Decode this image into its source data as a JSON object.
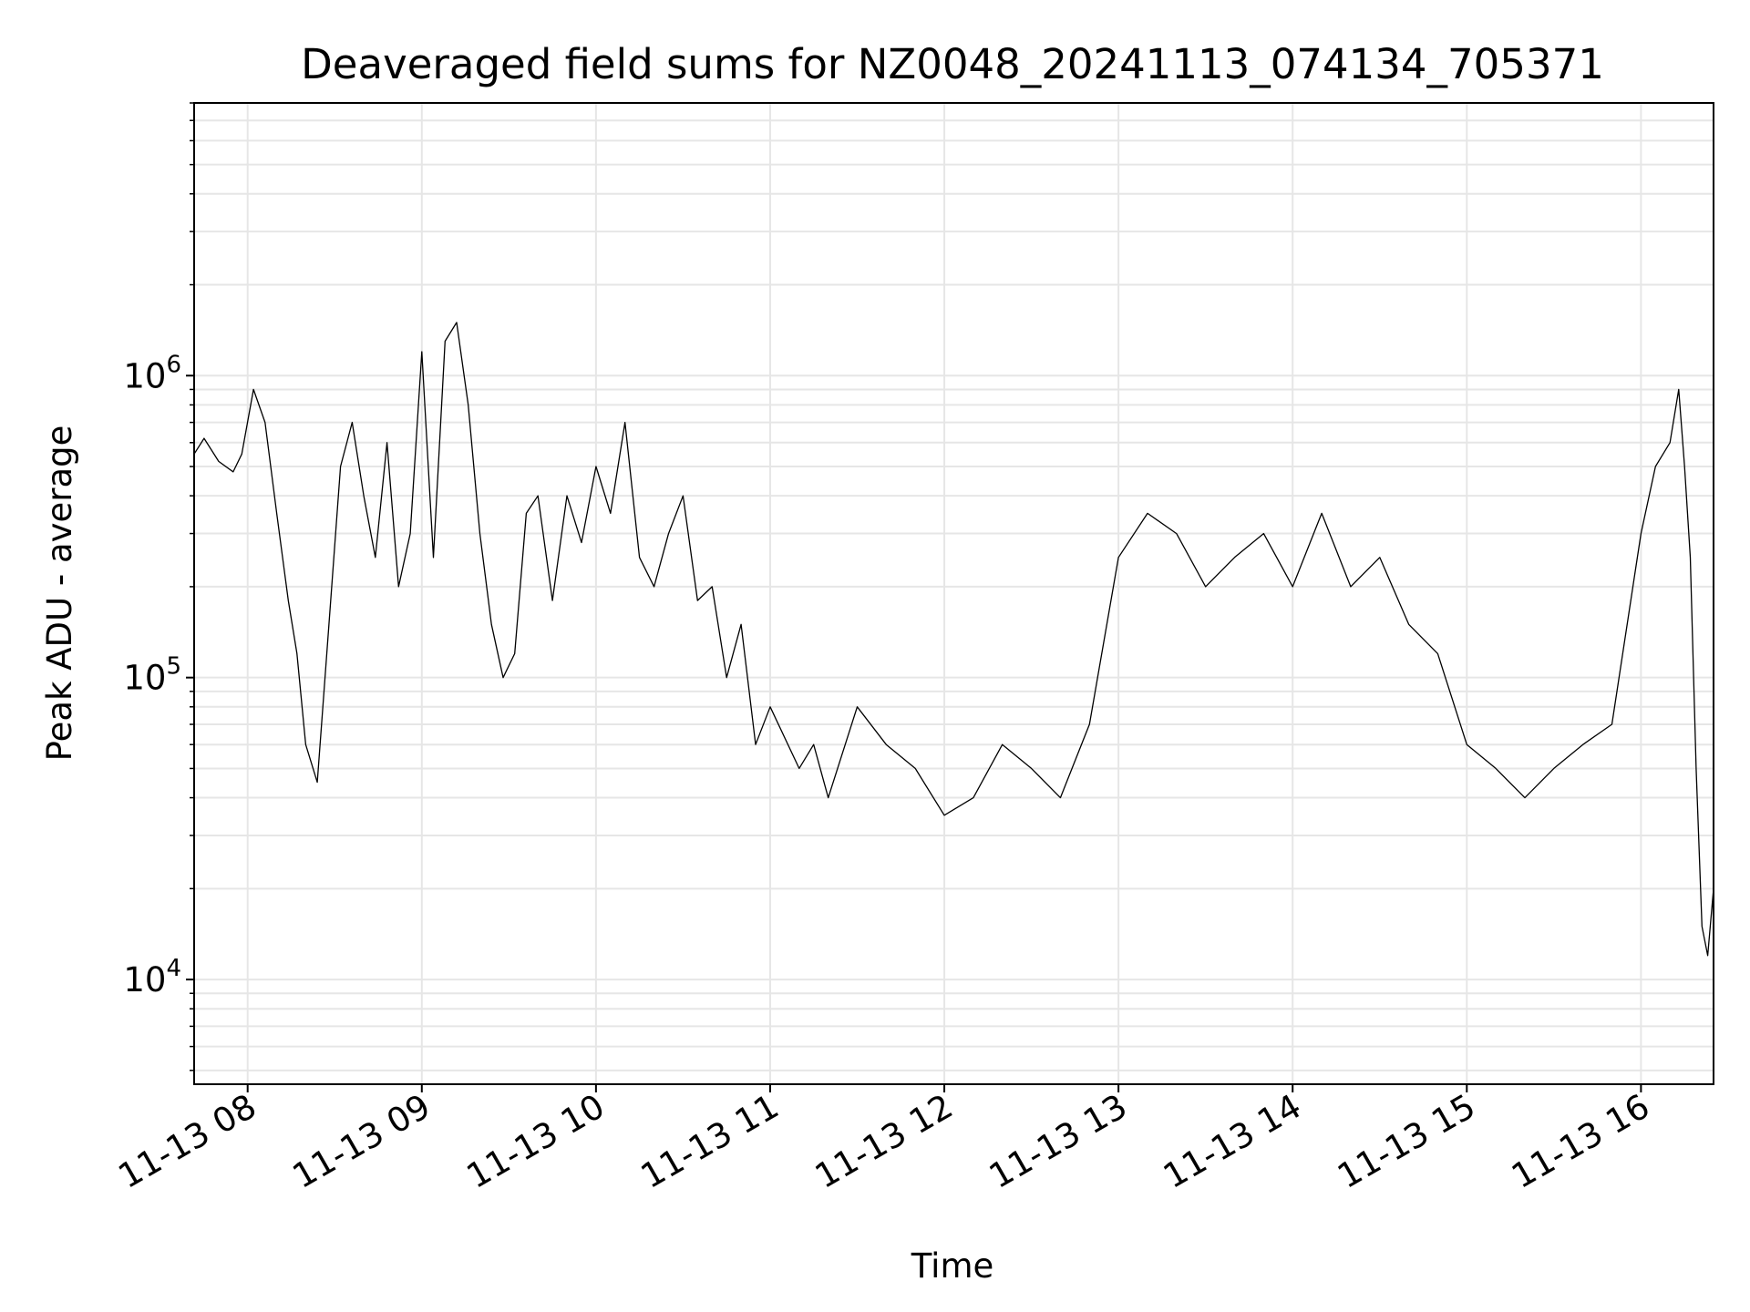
{
  "chart_data": {
    "type": "line",
    "title": "Deaveraged field sums for NZ0048_20241113_074134_705371",
    "xlabel": "Time",
    "ylabel": "Peak ADU - average",
    "yscale": "log",
    "ylim": [
      4500,
      8000000
    ],
    "xlim": [
      "2024-11-13T07:41:34",
      "2024-11-13T16:25:00"
    ],
    "grid": true,
    "line_color": "#000000",
    "grid_color": "#e6e6e6",
    "x_ticks": [
      {
        "value": "2024-11-13T08:00:00",
        "label": "11-13 08"
      },
      {
        "value": "2024-11-13T09:00:00",
        "label": "11-13 09"
      },
      {
        "value": "2024-11-13T10:00:00",
        "label": "11-13 10"
      },
      {
        "value": "2024-11-13T11:00:00",
        "label": "11-13 11"
      },
      {
        "value": "2024-11-13T12:00:00",
        "label": "11-13 12"
      },
      {
        "value": "2024-11-13T13:00:00",
        "label": "11-13 13"
      },
      {
        "value": "2024-11-13T14:00:00",
        "label": "11-13 14"
      },
      {
        "value": "2024-11-13T15:00:00",
        "label": "11-13 15"
      },
      {
        "value": "2024-11-13T16:00:00",
        "label": "11-13 16"
      }
    ],
    "y_ticks": [
      {
        "value": 10000,
        "base": "10",
        "exp": "4"
      },
      {
        "value": 100000,
        "base": "10",
        "exp": "5"
      },
      {
        "value": 1000000,
        "base": "10",
        "exp": "6"
      }
    ],
    "series": [
      {
        "x": [
          "2024-11-13T07:41:34",
          "2024-11-13T07:45:00",
          "2024-11-13T07:50:00",
          "2024-11-13T07:55:00",
          "2024-11-13T07:58:00",
          "2024-11-13T08:02:00",
          "2024-11-13T08:06:00",
          "2024-11-13T08:10:00",
          "2024-11-13T08:14:00",
          "2024-11-13T08:17:00",
          "2024-11-13T08:20:00",
          "2024-11-13T08:24:00",
          "2024-11-13T08:28:00",
          "2024-11-13T08:32:00",
          "2024-11-13T08:36:00",
          "2024-11-13T08:40:00",
          "2024-11-13T08:44:00",
          "2024-11-13T08:48:00",
          "2024-11-13T08:52:00",
          "2024-11-13T08:56:00",
          "2024-11-13T09:00:00",
          "2024-11-13T09:04:00",
          "2024-11-13T09:08:00",
          "2024-11-13T09:12:00",
          "2024-11-13T09:16:00",
          "2024-11-13T09:20:00",
          "2024-11-13T09:24:00",
          "2024-11-13T09:28:00",
          "2024-11-13T09:32:00",
          "2024-11-13T09:36:00",
          "2024-11-13T09:40:00",
          "2024-11-13T09:45:00",
          "2024-11-13T09:50:00",
          "2024-11-13T09:55:00",
          "2024-11-13T10:00:00",
          "2024-11-13T10:05:00",
          "2024-11-13T10:10:00",
          "2024-11-13T10:15:00",
          "2024-11-13T10:20:00",
          "2024-11-13T10:25:00",
          "2024-11-13T10:30:00",
          "2024-11-13T10:35:00",
          "2024-11-13T10:40:00",
          "2024-11-13T10:45:00",
          "2024-11-13T10:50:00",
          "2024-11-13T10:55:00",
          "2024-11-13T11:00:00",
          "2024-11-13T11:10:00",
          "2024-11-13T11:15:00",
          "2024-11-13T11:20:00",
          "2024-11-13T11:30:00",
          "2024-11-13T11:40:00",
          "2024-11-13T11:50:00",
          "2024-11-13T12:00:00",
          "2024-11-13T12:10:00",
          "2024-11-13T12:20:00",
          "2024-11-13T12:30:00",
          "2024-11-13T12:40:00",
          "2024-11-13T12:50:00",
          "2024-11-13T13:00:00",
          "2024-11-13T13:10:00",
          "2024-11-13T13:20:00",
          "2024-11-13T13:30:00",
          "2024-11-13T13:40:00",
          "2024-11-13T13:50:00",
          "2024-11-13T14:00:00",
          "2024-11-13T14:10:00",
          "2024-11-13T14:20:00",
          "2024-11-13T14:30:00",
          "2024-11-13T14:40:00",
          "2024-11-13T14:50:00",
          "2024-11-13T15:00:00",
          "2024-11-13T15:10:00",
          "2024-11-13T15:20:00",
          "2024-11-13T15:30:00",
          "2024-11-13T15:40:00",
          "2024-11-13T15:50:00",
          "2024-11-13T16:00:00",
          "2024-11-13T16:05:00",
          "2024-11-13T16:10:00",
          "2024-11-13T16:13:00",
          "2024-11-13T16:15:00",
          "2024-11-13T16:17:00",
          "2024-11-13T16:19:00",
          "2024-11-13T16:21:00",
          "2024-11-13T16:23:00",
          "2024-11-13T16:25:00"
        ],
        "values": [
          550000,
          620000,
          520000,
          480000,
          550000,
          900000,
          700000,
          350000,
          180000,
          120000,
          60000,
          45000,
          150000,
          500000,
          700000,
          400000,
          250000,
          600000,
          200000,
          300000,
          1200000,
          250000,
          1300000,
          1500000,
          800000,
          300000,
          150000,
          100000,
          120000,
          350000,
          400000,
          180000,
          400000,
          280000,
          500000,
          350000,
          700000,
          250000,
          200000,
          300000,
          400000,
          180000,
          200000,
          100000,
          150000,
          60000,
          80000,
          50000,
          60000,
          40000,
          80000,
          60000,
          50000,
          35000,
          40000,
          60000,
          50000,
          40000,
          70000,
          250000,
          350000,
          300000,
          200000,
          250000,
          300000,
          200000,
          350000,
          200000,
          250000,
          150000,
          120000,
          60000,
          50000,
          40000,
          50000,
          60000,
          70000,
          300000,
          500000,
          600000,
          900000,
          500000,
          250000,
          50000,
          15000,
          12000,
          20000
        ]
      }
    ]
  }
}
